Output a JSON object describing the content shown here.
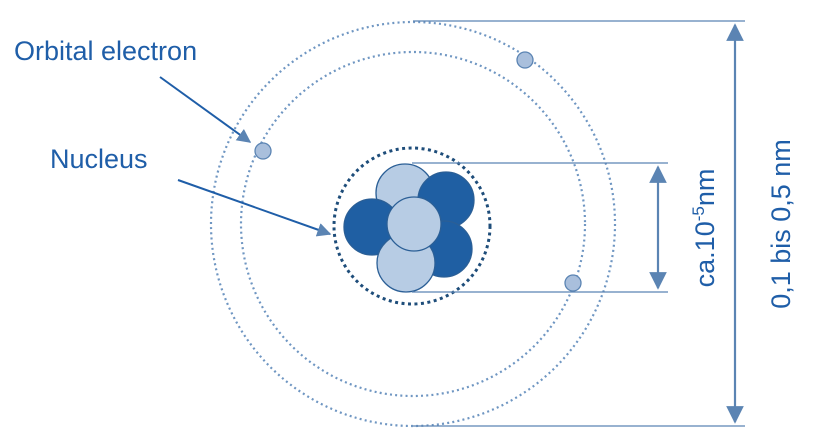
{
  "labels": {
    "orbital_electron": "Orbital electron",
    "nucleus": "Nucleus",
    "nucleus_size_prefix": "ca.10",
    "nucleus_size_exponent": "-5",
    "nucleus_size_unit": "nm",
    "atom_size": "0,1 bis 0,5 nm"
  },
  "colors": {
    "label_text": "#1f5ea8",
    "dimension_line": "#5b84b3",
    "orbit": "#6f96c2",
    "nucleus_boundary": "#1e4d7a",
    "proton": "#b7cce4",
    "neutron": "#1f5fa3",
    "electron": "#a9bfdc",
    "particle_stroke": "#2b5f96"
  }
}
